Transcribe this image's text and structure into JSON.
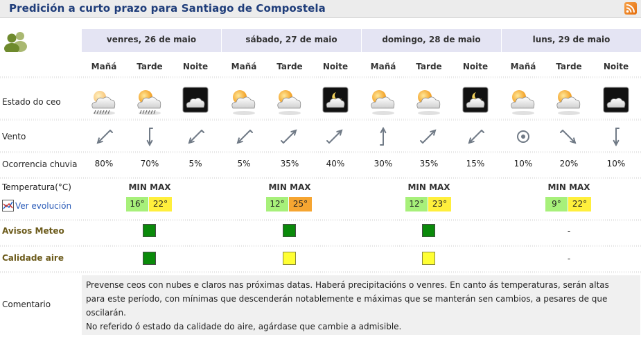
{
  "title": "Predición a curto prazo para Santiago de Compostela",
  "icons": {
    "rss": "rss-icon",
    "people": "users-icon",
    "evolution": "chart-icon"
  },
  "colors": {
    "title": "#1f3d7a",
    "header_bg": "#e4e4f3",
    "green": "#0a8a0a",
    "yellow": "#ffff33",
    "temp_green": "#a7f07a",
    "temp_yellow": "#ffef3c",
    "temp_orange": "#f6a531",
    "label_gold": "#6b5a1a"
  },
  "rows": {
    "estado": "Estado do ceo",
    "vento": "Vento",
    "chuvia": "Ocorrencia chuvia",
    "temperatura": "Temperatura(°C)",
    "ver_evolucion": "Ver evolución",
    "avisos": "Avisos Meteo",
    "calidade": "Calidade aire",
    "comentario": "Comentario"
  },
  "minmax_label": "MIN MAX",
  "days": [
    {
      "header": "venres, 26 de maio",
      "periods": [
        {
          "label": "Mañá",
          "sky": "cloudy-drizzle-icon",
          "wind": "arrow-southwest-icon",
          "rain": "80%"
        },
        {
          "label": "Tarde",
          "sky": "sun-cloud-rain-icon",
          "wind": "arrow-south-icon",
          "rain": "70%"
        },
        {
          "label": "Noite",
          "sky": "night-cloud-icon",
          "wind": "arrow-southwest-icon",
          "rain": "5%"
        }
      ],
      "tmin": "16°",
      "tmax": "22°",
      "tmin_color": "green",
      "tmax_color": "yellow",
      "aviso": "green",
      "calidade": "green"
    },
    {
      "header": "sábado, 27 de maio",
      "periods": [
        {
          "label": "Mañá",
          "sky": "sun-cloud-icon",
          "wind": "arrow-southwest-icon",
          "rain": "5%"
        },
        {
          "label": "Tarde",
          "sky": "sun-cloud-icon",
          "wind": "arrow-northeast-icon",
          "rain": "35%"
        },
        {
          "label": "Noite",
          "sky": "night-moon-cloud-icon",
          "wind": "arrow-northeast-icon",
          "rain": "40%"
        }
      ],
      "tmin": "12°",
      "tmax": "25°",
      "tmin_color": "green",
      "tmax_color": "orange",
      "aviso": "green",
      "calidade": "yellow"
    },
    {
      "header": "domingo, 28 de maio",
      "periods": [
        {
          "label": "Mañá",
          "sky": "sun-cloud-icon",
          "wind": "arrow-north-icon",
          "rain": "30%"
        },
        {
          "label": "Tarde",
          "sky": "sun-cloud-icon",
          "wind": "arrow-northeast-icon",
          "rain": "35%"
        },
        {
          "label": "Noite",
          "sky": "night-moon-cloud-icon",
          "wind": "arrow-southwest-icon",
          "rain": "15%"
        }
      ],
      "tmin": "12°",
      "tmax": "23°",
      "tmin_color": "green",
      "tmax_color": "yellow",
      "aviso": "green",
      "calidade": "yellow"
    },
    {
      "header": "luns, 29 de maio",
      "periods": [
        {
          "label": "Mañá",
          "sky": "sun-cloud-icon",
          "wind": "calm-circle-icon",
          "rain": "10%"
        },
        {
          "label": "Tarde",
          "sky": "sun-cloud-icon",
          "wind": "arrow-southeast-icon",
          "rain": "20%"
        },
        {
          "label": "Noite",
          "sky": "night-cloud-icon",
          "wind": "arrow-south-icon",
          "rain": "10%"
        }
      ],
      "tmin": "9°",
      "tmax": "22°",
      "tmin_color": "green",
      "tmax_color": "yellow",
      "aviso": "-",
      "calidade": "-"
    }
  ],
  "comment_lines": [
    "Prevense ceos con nubes e claros nas próximas datas. Haberá precipitacións o venres. En canto ás temperaturas, serán altas",
    "para este período, con mínimas que descenderán notablemente e máximas que se manterán sen cambios, a pesares de que",
    "oscilarán.",
    "No referido ó estado da calidade do aire, agárdase que cambie a admisible."
  ]
}
